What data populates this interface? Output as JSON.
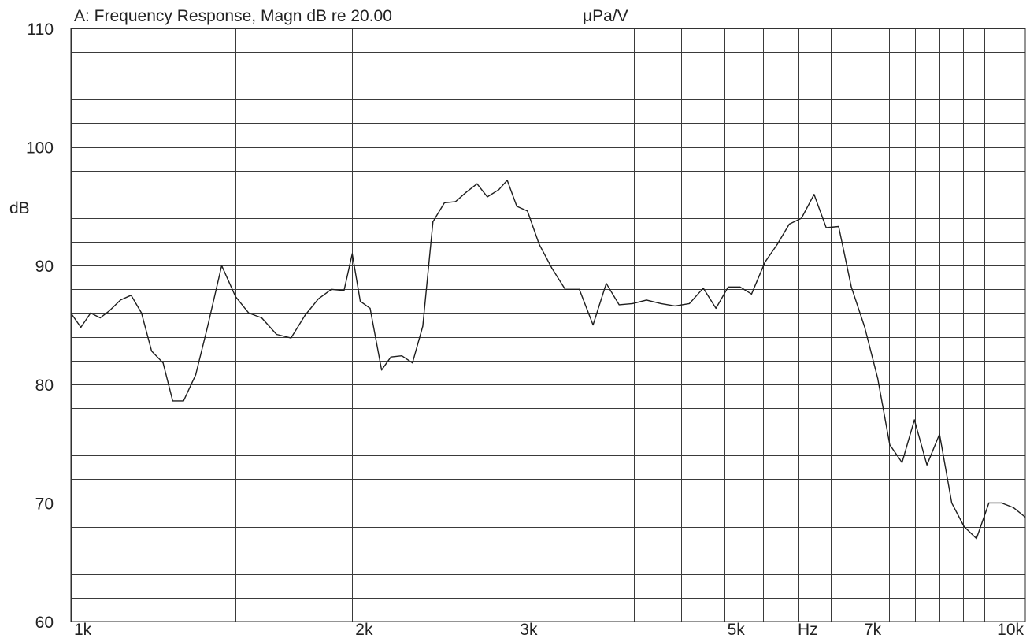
{
  "chart_data": {
    "type": "line",
    "title": "A: Frequency Response, Magn dB re 20.00",
    "title_unit": "μPa/V",
    "xlabel": "Hz",
    "ylabel": "dB",
    "x_scale": "log",
    "xlim": [
      1000,
      10500
    ],
    "ylim": [
      60,
      110
    ],
    "x_ticks": [
      {
        "value": 1000,
        "label": "1k"
      },
      {
        "value": 2000,
        "label": "2k"
      },
      {
        "value": 3000,
        "label": "3k"
      },
      {
        "value": 5000,
        "label": "5k"
      },
      {
        "value": 7000,
        "label": "7k"
      },
      {
        "value": 10000,
        "label": "10k"
      }
    ],
    "x_grid": [
      1000,
      1500,
      2000,
      2500,
      3000,
      3500,
      4000,
      4500,
      5000,
      5500,
      6000,
      6500,
      7000,
      7500,
      8000,
      8500,
      9000,
      9500,
      10000
    ],
    "y_ticks": [
      60,
      70,
      80,
      90,
      100,
      110
    ],
    "y_grid_step": 2,
    "grid": true,
    "series": [
      {
        "x": [
          1000,
          1025,
          1050,
          1075,
          1100,
          1130,
          1160,
          1190,
          1220,
          1255,
          1285,
          1320,
          1360,
          1400,
          1450,
          1500,
          1550,
          1600,
          1660,
          1720,
          1780,
          1840,
          1900,
          1960,
          2000,
          2040,
          2090,
          2150,
          2200,
          2260,
          2320,
          2380,
          2440,
          2510,
          2580,
          2650,
          2720,
          2790,
          2870,
          2930,
          3000,
          3080,
          3170,
          3270,
          3380,
          3500,
          3620,
          3740,
          3860,
          3990,
          4130,
          4280,
          4430,
          4590,
          4750,
          4900,
          5050,
          5200,
          5350,
          5530,
          5700,
          5870,
          6050,
          6240,
          6430,
          6630,
          6840,
          7070,
          7300,
          7520,
          7750,
          7990,
          8240,
          8500,
          8760,
          9030,
          9310,
          9600,
          9900,
          10200,
          10500
        ],
        "y": [
          86,
          84.8,
          86,
          85.6,
          86.2,
          87.1,
          87.5,
          86,
          82.8,
          81.8,
          78.6,
          78.6,
          80.8,
          84.8,
          90,
          87.4,
          86,
          85.6,
          84.2,
          83.9,
          85.8,
          87.2,
          88,
          87.9,
          91,
          87,
          86.4,
          81.2,
          82.3,
          82.4,
          81.8,
          84.9,
          93.7,
          95.3,
          95.4,
          96.2,
          96.9,
          95.8,
          96.4,
          97.2,
          95,
          94.6,
          91.8,
          89.8,
          88,
          88,
          85,
          88.5,
          86.7,
          86.8,
          87.1,
          86.8,
          86.6,
          86.8,
          88.1,
          86.4,
          88.2,
          88.2,
          87.6,
          90.3,
          91.8,
          93.5,
          94,
          96,
          93.2,
          93.3,
          88.2,
          84.8,
          80.5,
          74.9,
          73.4,
          77,
          73.2,
          75.8,
          70,
          68,
          67,
          70,
          70,
          69.6,
          68.8
        ]
      }
    ]
  }
}
